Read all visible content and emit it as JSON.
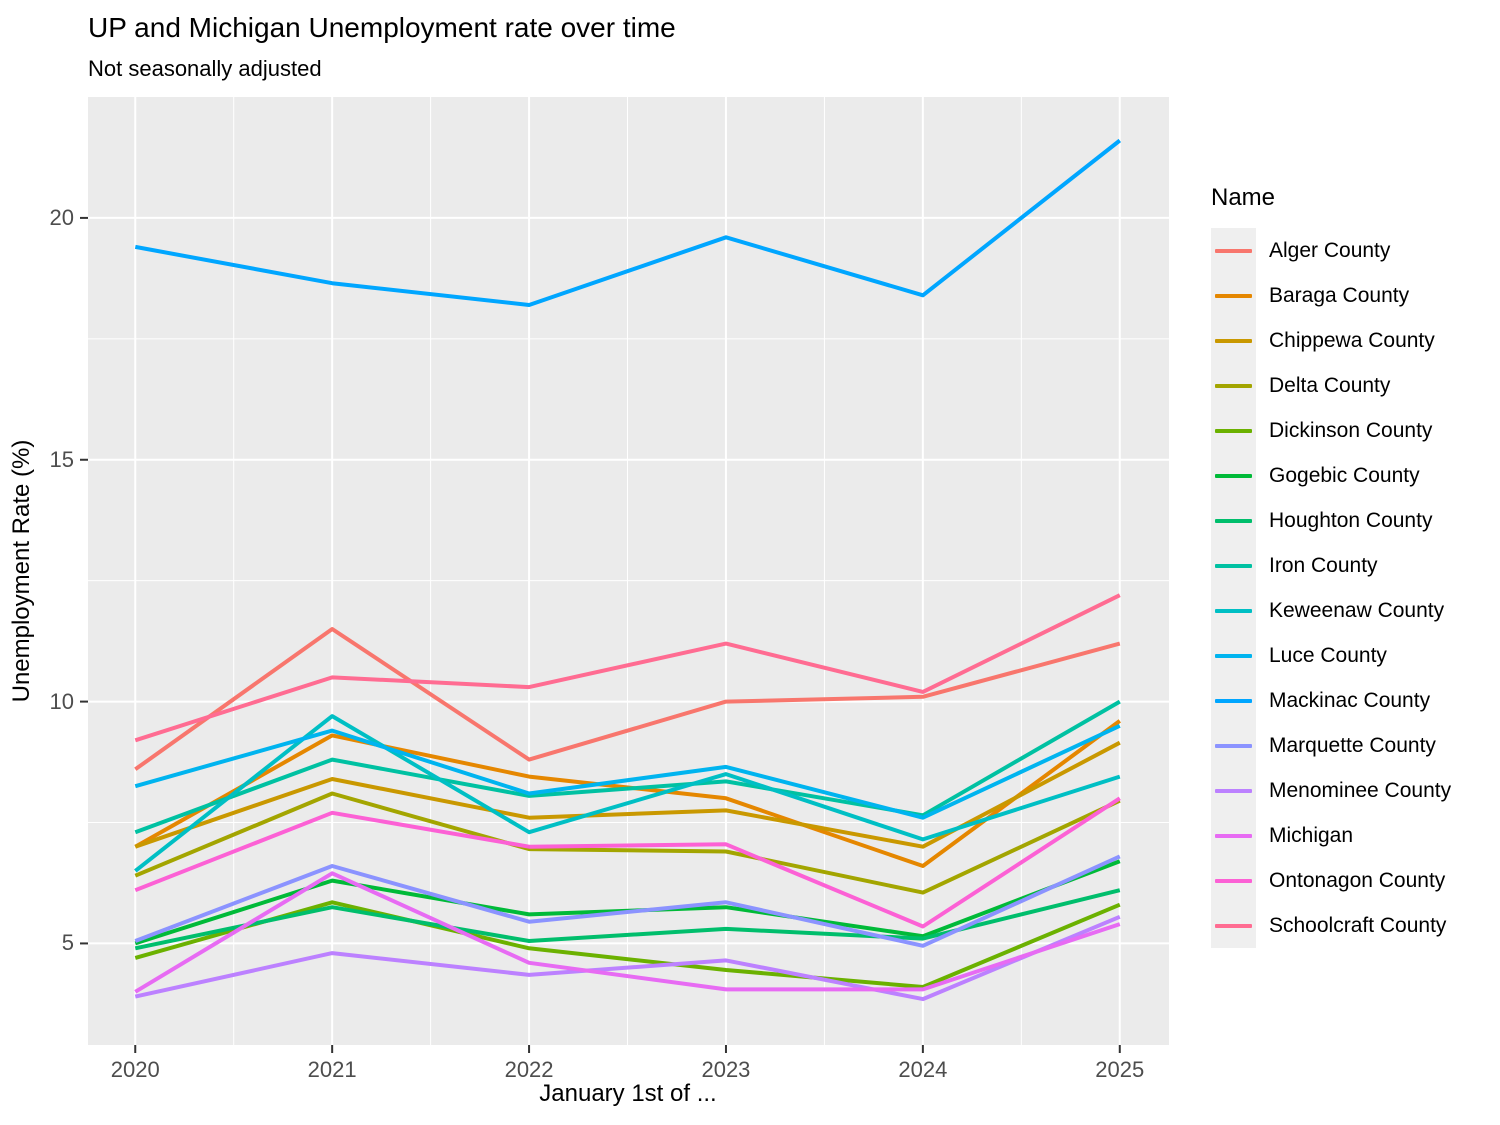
{
  "chart_data": {
    "type": "line",
    "title": "UP and Michigan Unemployment rate over time",
    "subtitle": "Not seasonally adjusted",
    "xlabel": "January 1st of ...",
    "ylabel": "Unemployment Rate (%)",
    "legend_title": "Name",
    "legend_position": "right",
    "grid": true,
    "panel_bg": "#EBEBEB",
    "grid_color": "#FFFFFF",
    "tick_label_color": "#4D4D4D",
    "x": [
      2020,
      2021,
      2022,
      2023,
      2024,
      2025
    ],
    "x_tick_labels": [
      "2020",
      "2021",
      "2022",
      "2023",
      "2024",
      "2025"
    ],
    "x_minor_ticks": [
      2020.5,
      2021.5,
      2022.5,
      2023.5,
      2024.5
    ],
    "xlim": [
      2019.76,
      2025.25
    ],
    "yticks": [
      5,
      10,
      15,
      20
    ],
    "y_tick_labels": [
      "5",
      "10",
      "15",
      "20"
    ],
    "y_minor_ticks": [
      7.5,
      12.5,
      17.5
    ],
    "ylim": [
      2.9,
      22.5
    ],
    "series": [
      {
        "name": "Alger County",
        "color": "#F8766D",
        "values": [
          8.6,
          11.5,
          8.8,
          10.0,
          10.1,
          11.2
        ]
      },
      {
        "name": "Baraga County",
        "color": "#E58700",
        "values": [
          7.0,
          9.3,
          8.45,
          8.0,
          6.6,
          9.6
        ]
      },
      {
        "name": "Chippewa County",
        "color": "#C99800",
        "values": [
          7.0,
          8.4,
          7.6,
          7.75,
          7.0,
          9.15
        ]
      },
      {
        "name": "Delta County",
        "color": "#A3A500",
        "values": [
          6.4,
          8.1,
          6.95,
          6.9,
          6.05,
          7.95
        ]
      },
      {
        "name": "Dickinson County",
        "color": "#6BB100",
        "values": [
          4.7,
          5.85,
          4.9,
          4.45,
          4.1,
          5.8
        ]
      },
      {
        "name": "Gogebic County",
        "color": "#00BA38",
        "values": [
          5.0,
          6.3,
          5.6,
          5.75,
          5.15,
          6.7
        ]
      },
      {
        "name": "Houghton County",
        "color": "#00BE6C",
        "values": [
          4.9,
          5.75,
          5.05,
          5.3,
          5.1,
          6.1
        ]
      },
      {
        "name": "Iron County",
        "color": "#00C1A2",
        "values": [
          7.3,
          8.8,
          8.05,
          8.35,
          7.65,
          10.0
        ]
      },
      {
        "name": "Keweenaw County",
        "color": "#00BFC4",
        "values": [
          6.5,
          9.7,
          7.3,
          8.5,
          7.15,
          8.45
        ]
      },
      {
        "name": "Luce County",
        "color": "#00B4EF",
        "values": [
          8.25,
          9.4,
          8.1,
          8.65,
          7.6,
          9.5
        ]
      },
      {
        "name": "Mackinac County",
        "color": "#00A6FF",
        "values": [
          19.4,
          18.65,
          18.2,
          19.6,
          18.4,
          21.6
        ]
      },
      {
        "name": "Marquette County",
        "color": "#8B93FF",
        "values": [
          5.05,
          6.6,
          5.45,
          5.85,
          4.95,
          6.8
        ]
      },
      {
        "name": "Menominee County",
        "color": "#BC81FF",
        "values": [
          3.9,
          4.8,
          4.35,
          4.65,
          3.85,
          5.55
        ]
      },
      {
        "name": "Michigan",
        "color": "#E76BF3",
        "values": [
          4.0,
          6.45,
          4.6,
          4.05,
          4.05,
          5.4
        ]
      },
      {
        "name": "Ontonagon County",
        "color": "#FC61D5",
        "values": [
          6.1,
          7.7,
          7.0,
          7.05,
          5.35,
          8.0
        ]
      },
      {
        "name": "Schoolcraft County",
        "color": "#FF6C92",
        "values": [
          9.2,
          10.5,
          10.3,
          11.2,
          10.2,
          12.2
        ]
      }
    ]
  }
}
